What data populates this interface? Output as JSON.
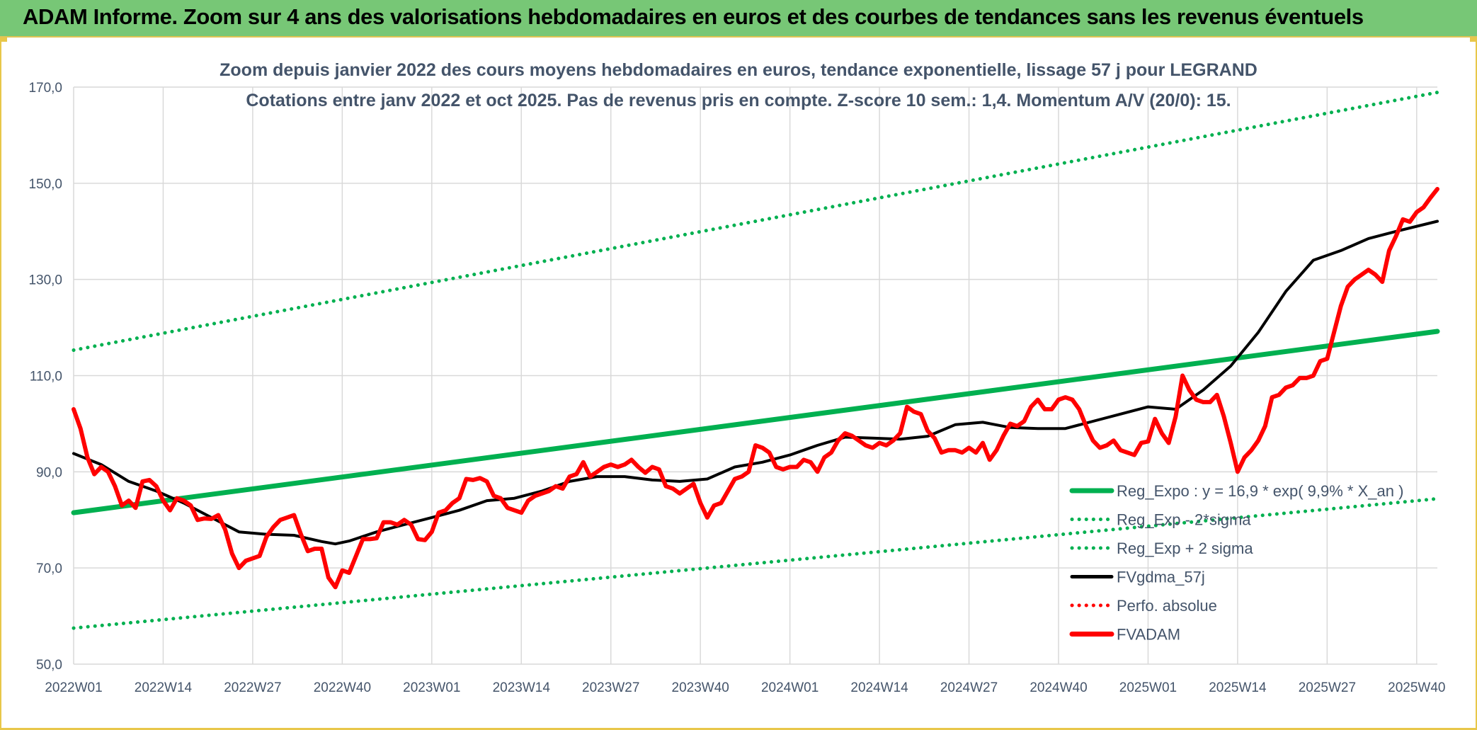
{
  "header": {
    "title": "ADAM Informe. Zoom sur 4 ans des valorisations hebdomadaires en euros et des courbes de tendances sans les revenus éventuels"
  },
  "chart_data": {
    "type": "line",
    "title": "Zoom depuis janvier 2022 des cours moyens hebdomadaires en euros, tendance exponentielle, lissage 57 j pour LEGRAND",
    "subtitle": "Cotations entre janv 2022 et oct 2025. Pas de revenus pris en compte. Z-score 10 sem.: 1,4. Momentum A/V (20/0): 15.",
    "ylim": [
      50,
      170
    ],
    "yticks": [
      "50,0",
      "70,0",
      "90,0",
      "110,0",
      "130,0",
      "150,0",
      "170,0"
    ],
    "xticks": [
      "2022W01",
      "2022W14",
      "2022W27",
      "2022W40",
      "2023W01",
      "2023W14",
      "2023W27",
      "2023W40",
      "2024W01",
      "2024W14",
      "2024W27",
      "2024W40",
      "2025W01",
      "2025W14",
      "2025W27",
      "2025W40"
    ],
    "x_week_of_tick_step": 13,
    "grid": true,
    "legend_position": "bottom-right",
    "colors": {
      "trend": "#00b050",
      "smooth": "#000000",
      "price": "#ff0000",
      "grid": "#d9d9d9",
      "text": "#44546a",
      "header": "#77c776"
    },
    "series": [
      {
        "name": "Reg_Expo : y = 16,9 * exp( 9,9% *  X_an )",
        "style": "solid",
        "color": "#00b050",
        "x": [
          0,
          198
        ],
        "values": [
          81.5,
          119.2
        ]
      },
      {
        "name": "Reg_Exp - 2*sigma",
        "style": "dotted",
        "color": "#00b050",
        "x": [
          0,
          198
        ],
        "values": [
          57.5,
          84.4
        ]
      },
      {
        "name": "Reg_Exp + 2 sigma",
        "style": "dotted",
        "color": "#00b050",
        "x": [
          0,
          198
        ],
        "values": [
          115.3,
          168.9
        ]
      },
      {
        "name": "FVgdma_57j",
        "style": "solid",
        "color": "#000000",
        "x": [
          0,
          4,
          8,
          12,
          16,
          20,
          24,
          28,
          32,
          36,
          38,
          40,
          44,
          48,
          52,
          56,
          60,
          64,
          68,
          72,
          76,
          80,
          84,
          88,
          92,
          96,
          100,
          104,
          108,
          112,
          116,
          120,
          124,
          128,
          132,
          136,
          140,
          144,
          148,
          152,
          156,
          160,
          164,
          168,
          172,
          176,
          180,
          184,
          188,
          192,
          198
        ],
        "values": [
          93.8,
          91.5,
          88,
          86,
          83.5,
          80.5,
          77.5,
          77,
          76.8,
          75.5,
          75,
          75.6,
          77.5,
          79,
          80.5,
          82,
          84,
          84.5,
          86,
          88,
          89,
          89,
          88.3,
          88,
          88.5,
          91,
          92,
          93.5,
          95.5,
          97.2,
          97,
          96.8,
          97.4,
          99.8,
          100.3,
          99.2,
          99,
          99,
          100.5,
          102,
          103.5,
          103,
          107,
          112,
          119,
          127.5,
          134,
          136,
          138.5,
          140,
          142.1
        ]
      },
      {
        "name": "Perfo. absolue",
        "style": "dotted",
        "color": "#ff0000",
        "values": []
      },
      {
        "name": "FVADAM",
        "style": "solid",
        "color": "#ff0000",
        "x": [
          0,
          1,
          2,
          3,
          4,
          5,
          6,
          7,
          8,
          9,
          10,
          11,
          12,
          13,
          14,
          15,
          16,
          17,
          18,
          19,
          20,
          21,
          22,
          23,
          24,
          25,
          26,
          27,
          28,
          29,
          30,
          31,
          32,
          33,
          34,
          35,
          36,
          37,
          38,
          39,
          40,
          41,
          42,
          43,
          44,
          45,
          46,
          47,
          48,
          49,
          50,
          51,
          52,
          53,
          54,
          55,
          56,
          57,
          58,
          59,
          60,
          61,
          62,
          63,
          64,
          65,
          66,
          67,
          68,
          69,
          70,
          71,
          72,
          73,
          74,
          75,
          76,
          77,
          78,
          79,
          80,
          81,
          82,
          83,
          84,
          85,
          86,
          87,
          88,
          89,
          90,
          91,
          92,
          93,
          94,
          95,
          96,
          97,
          98,
          99,
          100,
          101,
          102,
          103,
          104,
          105,
          106,
          107,
          108,
          109,
          110,
          111,
          112,
          113,
          114,
          115,
          116,
          117,
          118,
          119,
          120,
          121,
          122,
          123,
          124,
          125,
          126,
          127,
          128,
          129,
          130,
          131,
          132,
          133,
          134,
          135,
          136,
          137,
          138,
          139,
          140,
          141,
          142,
          143,
          144,
          145,
          146,
          147,
          148,
          149,
          150,
          151,
          152,
          153,
          154,
          155,
          156,
          157,
          158,
          159,
          160,
          161,
          162,
          163,
          164,
          165,
          166,
          167,
          168,
          169,
          170,
          171,
          172,
          173,
          174,
          175,
          176,
          177,
          178,
          179,
          180,
          181,
          182,
          183,
          184,
          185,
          186,
          187,
          188,
          189,
          190,
          191,
          192,
          193,
          194,
          195,
          196,
          197,
          198
        ],
        "values": [
          103,
          99,
          93,
          89.5,
          91,
          90,
          87,
          83,
          84,
          82.5,
          88,
          88.3,
          87,
          84,
          82,
          84.5,
          84,
          83,
          80,
          80.3,
          80.2,
          81,
          78,
          73,
          70,
          71.5,
          72,
          72.5,
          76.5,
          78.5,
          80,
          80.5,
          81,
          77,
          73.5,
          74,
          74,
          68,
          66,
          69.5,
          69,
          72.5,
          76,
          76,
          76.2,
          79.5,
          79.5,
          79,
          80,
          79,
          76,
          75.8,
          77.5,
          81.5,
          82,
          83.5,
          84.5,
          88.5,
          88.3,
          88.7,
          88,
          85,
          84.5,
          82.5,
          82,
          81.5,
          84,
          85,
          85.5,
          86,
          87,
          86.5,
          89,
          89.5,
          92,
          89,
          90,
          91,
          91.5,
          91,
          91.5,
          92.5,
          91,
          89.8,
          91,
          90.5,
          87,
          86.5,
          85.5,
          86.5,
          87.5,
          83.5,
          80.5,
          83,
          83.5,
          86,
          88.5,
          89,
          90,
          95.5,
          95,
          94,
          91,
          90.5,
          91,
          91,
          92.5,
          92,
          90,
          93,
          94,
          96.5,
          98,
          97.5,
          96.5,
          95.5,
          95,
          96,
          95.5,
          96.5,
          98,
          103.5,
          102.5,
          102,
          98.5,
          97,
          94,
          94.5,
          94.5,
          94,
          95,
          94,
          96,
          92.5,
          94.5,
          97.5,
          100,
          99.5,
          100.5,
          103.5,
          105,
          103,
          103,
          105,
          105.5,
          105,
          103,
          99.5,
          96.5,
          95,
          95.5,
          96.5,
          94.5,
          94,
          93.5,
          96,
          96.3,
          101,
          98,
          96,
          101.5,
          110,
          107,
          105,
          104.5,
          104.5,
          106,
          101.5,
          96,
          90,
          93,
          94.5,
          96.5,
          99.5,
          105.5,
          106,
          107.5,
          108,
          109.5,
          109.5,
          110,
          113,
          113.5,
          119,
          124.5,
          128.5,
          130,
          131,
          132,
          131,
          129.5,
          136,
          139,
          142.5,
          142,
          144,
          145,
          147,
          148.8
        ]
      }
    ]
  }
}
